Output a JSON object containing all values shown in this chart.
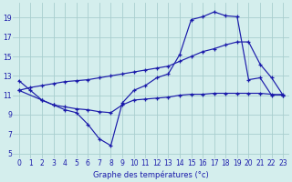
{
  "title": "Graphe des températures (°c)",
  "background_color": "#d4eeed",
  "grid_color": "#a8cece",
  "line_color": "#1a1aaa",
  "x_ticks": [
    0,
    1,
    2,
    3,
    4,
    5,
    6,
    7,
    8,
    9,
    10,
    11,
    12,
    13,
    14,
    15,
    16,
    17,
    18,
    19,
    20,
    21,
    22,
    23
  ],
  "y_ticks": [
    5,
    7,
    9,
    11,
    13,
    15,
    17,
    19
  ],
  "xlim": [
    -0.5,
    23.5
  ],
  "ylim": [
    4.5,
    20.5
  ],
  "line1_x": [
    0,
    1,
    2,
    3,
    4,
    5,
    6,
    7,
    8,
    9,
    10,
    11,
    12,
    13,
    14,
    15,
    16,
    17,
    18,
    19,
    20,
    21,
    22,
    23
  ],
  "line1_y": [
    12.5,
    11.5,
    10.5,
    10.0,
    9.5,
    9.2,
    8.0,
    6.5,
    5.8,
    10.2,
    11.5,
    12.0,
    12.8,
    13.2,
    15.2,
    18.8,
    19.1,
    19.6,
    19.2,
    19.1,
    12.6,
    12.8,
    11.0,
    11.1
  ],
  "line2_x": [
    0,
    1,
    2,
    3,
    4,
    5,
    6,
    7,
    8,
    9,
    10,
    11,
    12,
    13,
    14,
    15,
    16,
    17,
    18,
    19,
    20,
    21,
    22,
    23
  ],
  "line2_y": [
    11.5,
    11.8,
    12.0,
    12.2,
    12.4,
    12.5,
    12.6,
    12.8,
    13.0,
    13.2,
    13.4,
    13.6,
    13.8,
    14.0,
    14.5,
    15.0,
    15.5,
    15.8,
    16.2,
    16.5,
    16.5,
    14.2,
    12.8,
    11.0
  ],
  "line3_x": [
    0,
    2,
    3,
    4,
    5,
    6,
    7,
    8,
    9,
    10,
    11,
    12,
    13,
    14,
    15,
    16,
    17,
    18,
    19,
    20,
    21,
    22,
    23
  ],
  "line3_y": [
    11.5,
    10.5,
    10.0,
    9.8,
    9.6,
    9.5,
    9.3,
    9.2,
    10.0,
    10.5,
    10.6,
    10.7,
    10.8,
    11.0,
    11.1,
    11.1,
    11.2,
    11.2,
    11.2,
    11.2,
    11.2,
    11.1,
    11.0
  ],
  "xlabel_fontsize": 6.0,
  "tick_fontsize": 5.5
}
